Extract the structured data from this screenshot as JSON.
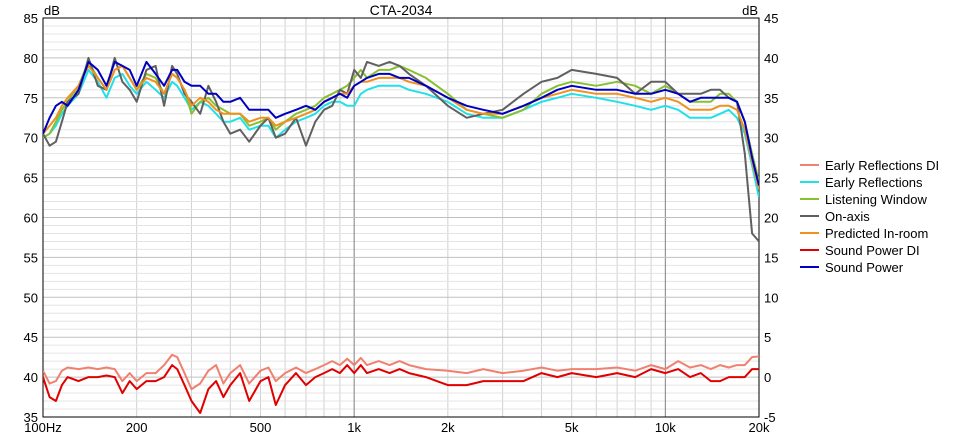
{
  "chart_data": {
    "type": "line",
    "title": "CTA-2034",
    "ylabel_left": "dB",
    "ylabel_right": "dB",
    "x_scale": "log",
    "xlim": [
      100,
      20000
    ],
    "ylim_left": [
      35,
      85
    ],
    "ylim_right": [
      -5,
      45
    ],
    "x_ticks": [
      {
        "value": 100,
        "label": "100Hz"
      },
      {
        "value": 200,
        "label": "200"
      },
      {
        "value": 500,
        "label": "500"
      },
      {
        "value": 1000,
        "label": "1k"
      },
      {
        "value": 2000,
        "label": "2k"
      },
      {
        "value": 5000,
        "label": "5k"
      },
      {
        "value": 10000,
        "label": "10k"
      },
      {
        "value": 20000,
        "label": "20k"
      }
    ],
    "y_ticks_left": [
      35,
      40,
      45,
      50,
      55,
      60,
      65,
      70,
      75,
      80,
      85
    ],
    "y_ticks_right": [
      -5,
      0,
      5,
      10,
      15,
      20,
      25,
      30,
      35,
      40,
      45
    ],
    "grid": true,
    "legend_position": "right",
    "series": [
      {
        "name": "Early Reflections DI",
        "color": "#f08070",
        "axis": "right",
        "x": [
          100,
          105,
          110,
          115,
          120,
          130,
          140,
          150,
          160,
          170,
          180,
          190,
          200,
          215,
          230,
          245,
          260,
          270,
          285,
          300,
          320,
          340,
          360,
          380,
          400,
          430,
          460,
          500,
          530,
          560,
          600,
          650,
          700,
          750,
          800,
          850,
          900,
          950,
          1000,
          1050,
          1100,
          1200,
          1300,
          1400,
          1500,
          1700,
          2000,
          2300,
          2600,
          3000,
          3500,
          4000,
          4500,
          5000,
          6000,
          7000,
          8000,
          9000,
          10000,
          11000,
          12000,
          13000,
          14000,
          15000,
          16000,
          17000,
          18000,
          19000,
          20000
        ],
        "y": [
          0.8,
          -0.8,
          -0.5,
          0.8,
          1.2,
          1.0,
          1.2,
          1.0,
          1.2,
          1.0,
          -0.5,
          0.5,
          -0.5,
          0.5,
          0.5,
          1.5,
          2.8,
          2.5,
          0.5,
          -1.5,
          -0.8,
          0.8,
          1.5,
          -0.8,
          0.5,
          1.5,
          -0.8,
          0.8,
          1.2,
          -0.5,
          0.5,
          1.2,
          0.5,
          1.0,
          1.5,
          2.0,
          1.5,
          2.3,
          1.5,
          2.4,
          1.5,
          2.0,
          1.5,
          2.0,
          1.5,
          1.0,
          0.8,
          0.5,
          1.0,
          0.5,
          0.8,
          1.2,
          0.8,
          1.0,
          1.0,
          1.2,
          0.8,
          1.5,
          1.0,
          2.0,
          1.2,
          1.5,
          1.0,
          1.5,
          1.2,
          1.5,
          1.5,
          2.5,
          2.6
        ]
      },
      {
        "name": "Early Reflections",
        "color": "#20e0e8",
        "axis": "left",
        "x": [
          100,
          105,
          110,
          115,
          120,
          130,
          140,
          150,
          160,
          170,
          180,
          190,
          200,
          215,
          230,
          245,
          260,
          270,
          285,
          300,
          320,
          340,
          360,
          380,
          400,
          430,
          460,
          500,
          530,
          560,
          600,
          650,
          700,
          750,
          800,
          850,
          900,
          950,
          1000,
          1050,
          1100,
          1200,
          1300,
          1400,
          1500,
          1700,
          2000,
          2300,
          2600,
          3000,
          3500,
          4000,
          4500,
          5000,
          6000,
          7000,
          8000,
          9000,
          10000,
          11000,
          12000,
          13000,
          14000,
          15000,
          16000,
          17000,
          18000,
          19000,
          20000
        ],
        "y": [
          70.0,
          70.5,
          71.5,
          73.0,
          74.0,
          75.5,
          78.5,
          77.0,
          75.0,
          77.5,
          78.0,
          76.5,
          75.5,
          77.0,
          76.0,
          75.0,
          77.0,
          76.5,
          75.0,
          73.5,
          74.5,
          74.0,
          73.0,
          72.0,
          72.0,
          72.5,
          71.0,
          71.5,
          71.5,
          70.0,
          71.0,
          72.0,
          72.5,
          73.0,
          74.0,
          74.5,
          74.5,
          74.0,
          74.0,
          75.5,
          76.0,
          76.5,
          76.5,
          76.5,
          76.0,
          75.5,
          74.5,
          73.0,
          72.5,
          72.5,
          73.5,
          74.5,
          75.0,
          75.5,
          75.0,
          74.5,
          74.0,
          73.5,
          74.0,
          73.5,
          72.5,
          72.5,
          72.5,
          73.0,
          73.5,
          72.5,
          70.5,
          66.5,
          62.5
        ]
      },
      {
        "name": "Listening Window",
        "color": "#88c030",
        "axis": "left",
        "x": [
          100,
          105,
          110,
          115,
          120,
          130,
          140,
          150,
          160,
          170,
          180,
          190,
          200,
          215,
          230,
          245,
          260,
          270,
          285,
          300,
          320,
          340,
          360,
          380,
          400,
          430,
          460,
          500,
          530,
          560,
          600,
          650,
          700,
          750,
          800,
          850,
          900,
          950,
          1000,
          1050,
          1100,
          1200,
          1300,
          1400,
          1500,
          1700,
          2000,
          2300,
          2600,
          3000,
          3500,
          4000,
          4500,
          5000,
          6000,
          7000,
          8000,
          9000,
          10000,
          11000,
          12000,
          13000,
          14000,
          15000,
          16000,
          17000,
          18000,
          19000,
          20000
        ],
        "y": [
          70.0,
          70.5,
          72.0,
          73.5,
          74.5,
          76.5,
          79.5,
          77.5,
          76.0,
          78.5,
          79.0,
          77.5,
          76.0,
          78.0,
          77.5,
          75.5,
          78.0,
          77.5,
          76.0,
          73.0,
          74.5,
          75.0,
          74.0,
          73.5,
          73.0,
          73.0,
          71.5,
          72.0,
          72.5,
          71.0,
          72.0,
          73.0,
          73.5,
          74.0,
          75.0,
          75.5,
          76.0,
          76.5,
          77.5,
          78.5,
          77.5,
          78.5,
          78.5,
          79.0,
          78.5,
          77.5,
          75.5,
          73.5,
          73.0,
          72.5,
          73.5,
          75.5,
          76.5,
          77.0,
          76.5,
          77.0,
          76.5,
          75.5,
          76.5,
          75.5,
          74.5,
          74.5,
          74.5,
          75.5,
          75.5,
          74.5,
          72.0,
          68.0,
          64.5
        ]
      },
      {
        "name": "On-axis",
        "color": "#606060",
        "axis": "left",
        "x": [
          100,
          105,
          110,
          115,
          120,
          130,
          140,
          150,
          160,
          170,
          180,
          190,
          200,
          215,
          230,
          245,
          260,
          270,
          285,
          300,
          320,
          340,
          360,
          380,
          400,
          430,
          460,
          500,
          530,
          560,
          600,
          650,
          700,
          750,
          800,
          850,
          900,
          950,
          1000,
          1050,
          1100,
          1200,
          1300,
          1400,
          1500,
          1700,
          2000,
          2300,
          2600,
          3000,
          3500,
          4000,
          4500,
          5000,
          6000,
          7000,
          8000,
          9000,
          10000,
          11000,
          12000,
          13000,
          14000,
          15000,
          16000,
          17000,
          18000,
          19000,
          20000
        ],
        "y": [
          70.5,
          69.0,
          69.5,
          72.0,
          74.5,
          75.5,
          80.0,
          76.5,
          76.0,
          80.0,
          77.0,
          76.0,
          74.5,
          78.5,
          79.0,
          74.0,
          79.0,
          78.0,
          75.5,
          74.5,
          73.0,
          76.5,
          74.5,
          72.0,
          70.5,
          71.0,
          69.5,
          71.5,
          72.5,
          70.0,
          70.5,
          72.5,
          69.0,
          72.0,
          73.5,
          74.0,
          76.0,
          75.5,
          78.5,
          77.5,
          79.5,
          79.0,
          79.5,
          79.0,
          78.0,
          76.5,
          74.0,
          72.5,
          73.0,
          73.5,
          75.5,
          77.0,
          77.5,
          78.5,
          78.0,
          77.5,
          75.5,
          77.0,
          77.0,
          75.5,
          75.5,
          75.5,
          76.0,
          76.0,
          75.0,
          74.5,
          68.0,
          58.0,
          57.0
        ]
      },
      {
        "name": "Predicted In-room",
        "color": "#f09020",
        "axis": "left",
        "x": [
          100,
          105,
          110,
          115,
          120,
          130,
          140,
          150,
          160,
          170,
          180,
          190,
          200,
          215,
          230,
          245,
          260,
          270,
          285,
          300,
          320,
          340,
          360,
          380,
          400,
          430,
          460,
          500,
          530,
          560,
          600,
          650,
          700,
          750,
          800,
          850,
          900,
          950,
          1000,
          1050,
          1100,
          1200,
          1300,
          1400,
          1500,
          1700,
          2000,
          2300,
          2600,
          3000,
          3500,
          4000,
          4500,
          5000,
          6000,
          7000,
          8000,
          9000,
          10000,
          11000,
          12000,
          13000,
          14000,
          15000,
          16000,
          17000,
          18000,
          19000,
          20000
        ],
        "y": [
          70.5,
          71.5,
          72.5,
          74.0,
          75.0,
          76.5,
          79.0,
          77.5,
          76.0,
          78.5,
          79.0,
          77.5,
          76.0,
          77.5,
          77.0,
          75.5,
          78.0,
          77.5,
          76.0,
          74.0,
          75.0,
          74.5,
          73.5,
          73.0,
          73.0,
          73.0,
          72.0,
          72.5,
          72.5,
          71.5,
          72.0,
          72.5,
          73.0,
          73.5,
          74.5,
          75.0,
          75.5,
          75.5,
          76.5,
          77.0,
          77.0,
          77.5,
          77.5,
          77.5,
          77.0,
          76.5,
          75.0,
          73.5,
          73.0,
          73.0,
          74.0,
          75.0,
          75.5,
          76.0,
          75.5,
          75.5,
          75.0,
          74.5,
          75.0,
          74.5,
          73.5,
          73.5,
          73.5,
          74.0,
          74.0,
          73.5,
          71.0,
          67.0,
          63.5
        ]
      },
      {
        "name": "Sound Power DI",
        "color": "#e00000",
        "axis": "right",
        "x": [
          100,
          105,
          110,
          115,
          120,
          130,
          140,
          150,
          160,
          170,
          180,
          190,
          200,
          215,
          230,
          245,
          260,
          270,
          285,
          300,
          320,
          340,
          360,
          380,
          400,
          430,
          460,
          500,
          530,
          560,
          600,
          650,
          700,
          750,
          800,
          850,
          900,
          950,
          1000,
          1050,
          1100,
          1200,
          1300,
          1400,
          1500,
          1700,
          2000,
          2300,
          2600,
          3000,
          3500,
          4000,
          4500,
          5000,
          6000,
          7000,
          8000,
          9000,
          10000,
          11000,
          12000,
          13000,
          14000,
          15000,
          16000,
          17000,
          18000,
          19000,
          20000
        ],
        "y": [
          0.0,
          -2.5,
          -3.0,
          -1.0,
          0.0,
          -0.5,
          0.0,
          0.0,
          0.2,
          0.0,
          -2.0,
          -0.5,
          -1.5,
          -0.5,
          -0.5,
          0.0,
          1.5,
          1.0,
          -1.0,
          -3.0,
          -4.5,
          -1.5,
          -0.5,
          -2.5,
          -1.0,
          0.5,
          -3.0,
          -0.5,
          0.0,
          -3.5,
          -1.0,
          0.5,
          -1.0,
          0.0,
          0.5,
          1.0,
          0.5,
          1.5,
          0.5,
          1.5,
          0.5,
          1.0,
          0.5,
          1.0,
          0.5,
          0.0,
          -1.0,
          -1.0,
          -0.5,
          -0.5,
          -0.5,
          0.5,
          0.0,
          0.5,
          0.0,
          0.5,
          0.0,
          1.0,
          0.5,
          1.0,
          0.0,
          0.5,
          -0.5,
          -0.5,
          0.0,
          0.0,
          0.0,
          1.0,
          1.0
        ]
      },
      {
        "name": "Sound Power",
        "color": "#0000c0",
        "axis": "left",
        "x": [
          100,
          105,
          110,
          115,
          120,
          130,
          140,
          150,
          160,
          170,
          180,
          190,
          200,
          215,
          230,
          245,
          260,
          270,
          285,
          300,
          320,
          340,
          360,
          380,
          400,
          430,
          460,
          500,
          530,
          560,
          600,
          650,
          700,
          750,
          800,
          850,
          900,
          950,
          1000,
          1050,
          1100,
          1200,
          1300,
          1400,
          1500,
          1700,
          2000,
          2300,
          2600,
          3000,
          3500,
          4000,
          4500,
          5000,
          6000,
          7000,
          8000,
          9000,
          10000,
          11000,
          12000,
          13000,
          14000,
          15000,
          16000,
          17000,
          18000,
          19000,
          20000
        ],
        "y": [
          70.5,
          72.5,
          74.0,
          74.5,
          74.0,
          76.0,
          79.5,
          78.5,
          76.5,
          79.5,
          79.0,
          78.5,
          76.5,
          79.5,
          78.0,
          76.5,
          78.5,
          78.5,
          77.0,
          76.5,
          76.5,
          75.5,
          75.5,
          74.5,
          74.5,
          75.0,
          73.5,
          73.5,
          73.5,
          72.5,
          73.0,
          73.5,
          74.0,
          73.5,
          74.5,
          75.0,
          75.5,
          75.0,
          76.5,
          77.0,
          77.5,
          78.0,
          78.0,
          77.5,
          77.5,
          76.5,
          75.0,
          74.0,
          73.5,
          73.0,
          74.0,
          75.0,
          76.0,
          76.5,
          76.0,
          76.0,
          75.5,
          75.5,
          76.0,
          75.5,
          74.5,
          75.0,
          75.0,
          75.0,
          75.0,
          74.5,
          72.0,
          67.5,
          64.0
        ]
      }
    ]
  }
}
